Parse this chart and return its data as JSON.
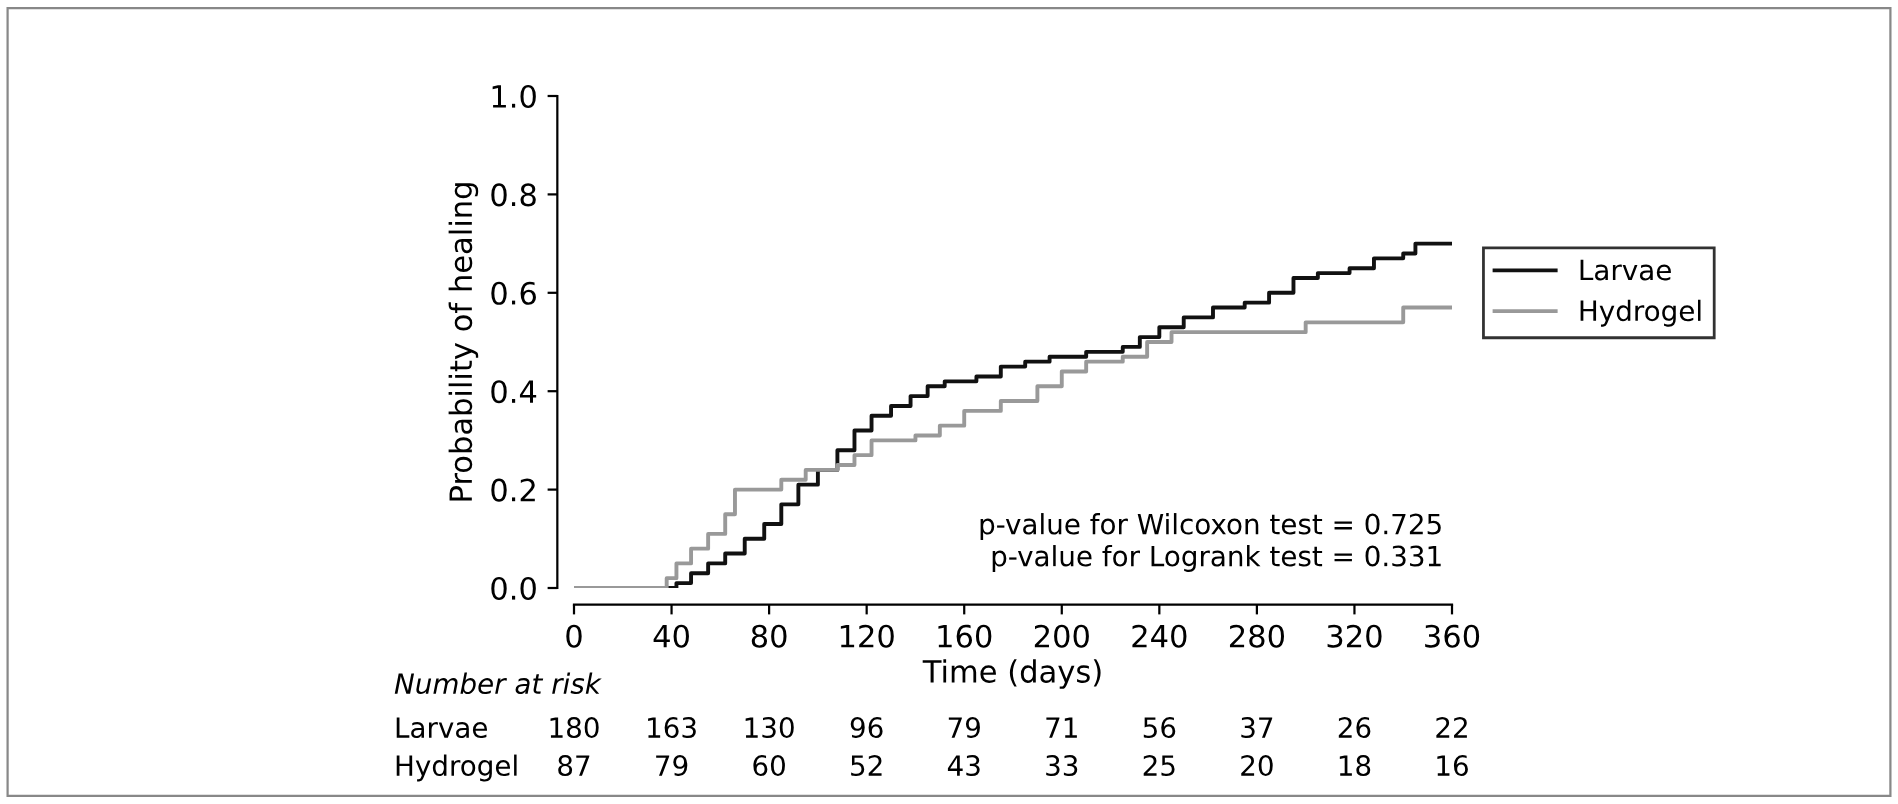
{
  "chart_data": {
    "type": "step",
    "xlabel": "Time (days)",
    "ylabel": "Probability of healing",
    "xlim": [
      0,
      360
    ],
    "xticks": [
      0,
      40,
      80,
      120,
      160,
      200,
      240,
      280,
      320,
      360
    ],
    "ylim": [
      0,
      1.0
    ],
    "yticks": [
      {
        "value": 0,
        "label": "0.0"
      },
      {
        "value": 0.2,
        "label": "0.2"
      },
      {
        "value": 0.4,
        "label": "0.4"
      },
      {
        "value": 0.6,
        "label": "0.6"
      },
      {
        "value": 0.8,
        "label": "0.8"
      },
      {
        "value": 1.0,
        "label": "1.0"
      }
    ],
    "grid": false,
    "legend": "right",
    "marker": "none",
    "line_style": "solid",
    "series": [
      {
        "name": "Larvae",
        "color": "#111111",
        "x": [
          0,
          42,
          48,
          55,
          62,
          70,
          78,
          85,
          92,
          100,
          108,
          115,
          122,
          130,
          138,
          145,
          152,
          165,
          175,
          185,
          195,
          210,
          225,
          232,
          240,
          250,
          262,
          275,
          285,
          295,
          305,
          318,
          328,
          340,
          345,
          360
        ],
        "values": [
          0,
          0.01,
          0.03,
          0.05,
          0.07,
          0.1,
          0.13,
          0.17,
          0.21,
          0.24,
          0.28,
          0.32,
          0.35,
          0.37,
          0.39,
          0.41,
          0.42,
          0.43,
          0.45,
          0.46,
          0.47,
          0.48,
          0.49,
          0.51,
          0.53,
          0.55,
          0.57,
          0.58,
          0.6,
          0.63,
          0.64,
          0.65,
          0.67,
          0.68,
          0.7,
          0.7
        ]
      },
      {
        "name": "Hydrogel",
        "color": "#999999",
        "x": [
          0,
          38,
          42,
          48,
          55,
          62,
          66,
          80,
          85,
          95,
          108,
          115,
          122,
          140,
          150,
          160,
          175,
          190,
          200,
          210,
          225,
          235,
          245,
          290,
          300,
          340,
          360
        ],
        "values": [
          0,
          0.02,
          0.05,
          0.08,
          0.11,
          0.15,
          0.2,
          0.2,
          0.22,
          0.24,
          0.25,
          0.27,
          0.3,
          0.31,
          0.33,
          0.36,
          0.38,
          0.41,
          0.44,
          0.46,
          0.47,
          0.5,
          0.52,
          0.52,
          0.54,
          0.57,
          0.57
        ]
      }
    ],
    "annotations": [
      "p-value for Wilcoxon test = 0.725",
      "p-value for Logrank test = 0.331",
      "Number at risk",
      "Larvae 180 163 130 96 79 71 56 37 26 22",
      "Hydrogel 87 79 60 52 43 33 25 20 18 16"
    ]
  }
}
